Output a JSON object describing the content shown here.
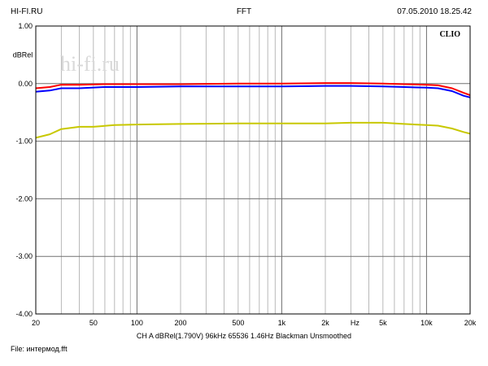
{
  "header": {
    "left": "HI-FI.RU",
    "center": "FFT",
    "right": "07.05.2010 18.25.42"
  },
  "chart_data": {
    "type": "line",
    "brand": "CLIO",
    "watermark": "hi-fi.ru",
    "ylabel": "dBRel",
    "xlabel": "Hz",
    "xscale": "log",
    "xlim": [
      20,
      20000
    ],
    "ylim": [
      -4.0,
      1.0
    ],
    "yticks": [
      "1.00",
      "0.00",
      "-1.00",
      "-2.00",
      "-3.00",
      "-4.00"
    ],
    "xticks": [
      "20",
      "50",
      "100",
      "200",
      "500",
      "1k",
      "2k",
      "5k",
      "10k",
      "20k"
    ],
    "grid": true,
    "series": [
      {
        "color": "#ff0000",
        "x": [
          20,
          25,
          30,
          40,
          60,
          100,
          200,
          500,
          1000,
          2000,
          3000,
          5000,
          7000,
          10000,
          12000,
          15000,
          18000,
          20000
        ],
        "y": [
          -0.08,
          -0.06,
          -0.02,
          -0.02,
          -0.01,
          -0.01,
          -0.01,
          0.0,
          0.0,
          0.01,
          0.01,
          0.0,
          -0.01,
          -0.02,
          -0.03,
          -0.08,
          -0.16,
          -0.2
        ]
      },
      {
        "color": "#0000ff",
        "x": [
          20,
          25,
          30,
          40,
          60,
          100,
          200,
          500,
          1000,
          2000,
          3000,
          5000,
          7000,
          10000,
          12000,
          15000,
          18000,
          20000
        ],
        "y": [
          -0.14,
          -0.12,
          -0.08,
          -0.08,
          -0.06,
          -0.06,
          -0.05,
          -0.05,
          -0.05,
          -0.04,
          -0.04,
          -0.05,
          -0.06,
          -0.07,
          -0.08,
          -0.13,
          -0.21,
          -0.24
        ]
      },
      {
        "color": "#c8c800",
        "x": [
          20,
          25,
          30,
          40,
          50,
          70,
          100,
          200,
          500,
          1000,
          2000,
          3000,
          5000,
          7000,
          10000,
          12000,
          15000,
          18000,
          20000
        ],
        "y": [
          -0.94,
          -0.88,
          -0.79,
          -0.75,
          -0.75,
          -0.72,
          -0.71,
          -0.7,
          -0.69,
          -0.69,
          -0.69,
          -0.68,
          -0.68,
          -0.7,
          -0.72,
          -0.73,
          -0.78,
          -0.84,
          -0.87
        ]
      }
    ]
  },
  "footer": {
    "settings": "CH A   dBRel(1.790V)   96kHz   65536   1.46Hz   Blackman   Unsmoothed",
    "file": "File: интермод.fft"
  }
}
